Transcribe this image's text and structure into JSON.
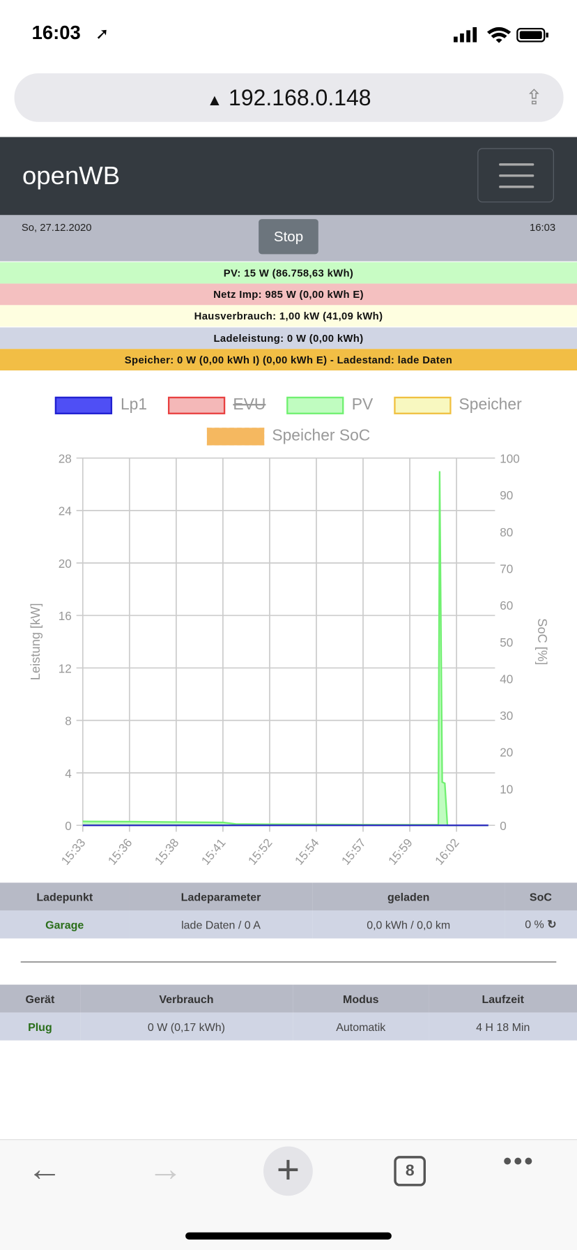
{
  "status_bar": {
    "time": "16:03"
  },
  "browser": {
    "url": "192.168.0.148",
    "tabs_count": "8"
  },
  "navbar": {
    "brand": "openWB"
  },
  "header": {
    "date": "So, 27.12.2020",
    "stop_label": "Stop",
    "time": "16:03"
  },
  "bands": [
    {
      "text": "PV: 15 W (86.758,63 kWh)",
      "color": "#c8fcc4"
    },
    {
      "text": "Netz Imp: 985 W (0,00 kWh E)",
      "color": "#f4c0c0"
    },
    {
      "text": "Hausverbrauch: 1,00 kW (41,09 kWh)",
      "color": "#fefee0"
    },
    {
      "text": "Ladeleistung: 0 W (0,00 kWh)",
      "color": "#d0d5e4"
    },
    {
      "text": "Speicher: 0 W (0,00 kWh I) (0,00 kWh E) - Ladestand: lade Daten",
      "color": "#f2be45"
    }
  ],
  "chart_data": {
    "type": "area",
    "legend": [
      {
        "name": "Lp1",
        "fill": "#4f4ff5",
        "border": "#2020d0",
        "hidden": false
      },
      {
        "name": "EVU",
        "fill": "#f4b8b8",
        "border": "#e84040",
        "hidden": true
      },
      {
        "name": "PV",
        "fill": "#c0fcc0",
        "border": "#70f070",
        "hidden": false
      },
      {
        "name": "Speicher",
        "fill": "#f8f8c0",
        "border": "#f0c040",
        "hidden": false
      },
      {
        "name": "Speicher SoC",
        "fill": "#f5b860",
        "border": "#f5b860",
        "hidden": false
      }
    ],
    "legend_position": "top",
    "x_ticks": [
      "15:33",
      "15:36",
      "15:38",
      "15:41",
      "15:52",
      "15:54",
      "15:57",
      "15:59",
      "16:02"
    ],
    "ylabel": "Leistung [kW]",
    "y_ticks": [
      0,
      4,
      8,
      12,
      16,
      20,
      24,
      28
    ],
    "ylim": [
      0,
      28
    ],
    "y2label": "SoC [%]",
    "y2_ticks": [
      0,
      10,
      20,
      30,
      40,
      50,
      60,
      70,
      80,
      90,
      100
    ],
    "y2lim": [
      0,
      100
    ],
    "grid": true,
    "series": [
      {
        "name": "PV",
        "color": "#70f070",
        "points": [
          [
            "15:33",
            0.3
          ],
          [
            "15:36",
            0.28
          ],
          [
            "15:38",
            0.25
          ],
          [
            "15:41",
            0.22
          ],
          [
            "15:44",
            0.1
          ],
          [
            "15:52",
            0.08
          ],
          [
            "15:54",
            0.07
          ],
          [
            "15:57",
            0.05
          ],
          [
            "15:59",
            0.04
          ],
          [
            "16:00:50",
            0.05
          ],
          [
            "16:00:55",
            27
          ],
          [
            "16:01:05",
            3.3
          ],
          [
            "16:01:15",
            3.2
          ],
          [
            "16:01:25",
            0
          ],
          [
            "16:03",
            0
          ]
        ]
      },
      {
        "name": "Lp1",
        "color": "#3030c0",
        "points": [
          [
            "15:33",
            0
          ],
          [
            "16:03",
            0
          ]
        ]
      }
    ]
  },
  "ladepunkt_table": {
    "headers": [
      "Ladepunkt",
      "Ladeparameter",
      "geladen",
      "SoC"
    ],
    "row": {
      "name": "Garage",
      "param": "lade Daten / 0 A",
      "charged": "0,0 kWh / 0,0 km",
      "soc": "0 %"
    }
  },
  "geraete_table": {
    "headers": [
      "Gerät",
      "Verbrauch",
      "Modus",
      "Laufzeit"
    ],
    "row": {
      "name": "Plug",
      "usage": "0 W (0,17 kWh)",
      "mode": "Automatik",
      "runtime": "4 H 18 Min"
    }
  }
}
